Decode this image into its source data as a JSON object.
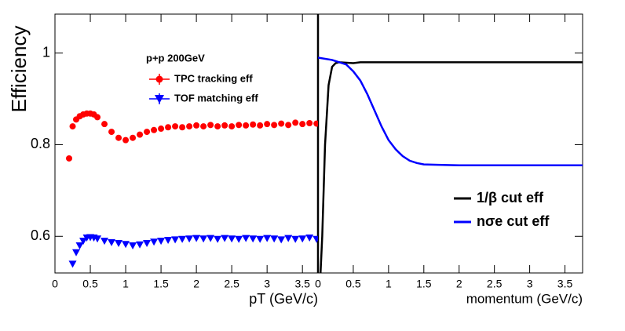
{
  "chart_data": [
    {
      "type": "scatter",
      "xlabel": "pT (GeV/c)",
      "ylabel": "Efficiency",
      "legend_title": "p+p 200GeV",
      "xlim": [
        0,
        3.72
      ],
      "ylim": [
        0.52,
        1.085
      ],
      "xticks": [
        0,
        0.5,
        1,
        1.5,
        2,
        2.5,
        3,
        3.5
      ],
      "yticks": [
        0.6,
        0.8,
        1
      ],
      "series": [
        {
          "name": "TPC tracking eff",
          "color": "#ff0000",
          "marker": "circle",
          "x": [
            0.2,
            0.25,
            0.3,
            0.35,
            0.4,
            0.45,
            0.5,
            0.55,
            0.6,
            0.7,
            0.8,
            0.9,
            1.0,
            1.1,
            1.2,
            1.3,
            1.4,
            1.5,
            1.6,
            1.7,
            1.8,
            1.9,
            2.0,
            2.1,
            2.2,
            2.3,
            2.4,
            2.5,
            2.6,
            2.7,
            2.8,
            2.9,
            3.0,
            3.1,
            3.2,
            3.3,
            3.4,
            3.5,
            3.6,
            3.7
          ],
          "values": [
            0.77,
            0.84,
            0.855,
            0.862,
            0.866,
            0.868,
            0.868,
            0.866,
            0.86,
            0.845,
            0.828,
            0.815,
            0.81,
            0.815,
            0.822,
            0.828,
            0.832,
            0.835,
            0.838,
            0.84,
            0.838,
            0.84,
            0.842,
            0.84,
            0.843,
            0.84,
            0.842,
            0.84,
            0.843,
            0.842,
            0.844,
            0.842,
            0.845,
            0.843,
            0.846,
            0.843,
            0.848,
            0.845,
            0.847,
            0.846
          ]
        },
        {
          "name": "TOF matching eff",
          "color": "#0000ff",
          "marker": "triangle-down",
          "x": [
            0.25,
            0.3,
            0.35,
            0.4,
            0.45,
            0.5,
            0.55,
            0.6,
            0.7,
            0.8,
            0.9,
            1.0,
            1.1,
            1.2,
            1.3,
            1.4,
            1.5,
            1.6,
            1.7,
            1.8,
            1.9,
            2.0,
            2.1,
            2.2,
            2.3,
            2.4,
            2.5,
            2.6,
            2.7,
            2.8,
            2.9,
            3.0,
            3.1,
            3.2,
            3.3,
            3.4,
            3.5,
            3.6,
            3.7
          ],
          "values": [
            0.54,
            0.565,
            0.58,
            0.59,
            0.597,
            0.598,
            0.597,
            0.595,
            0.59,
            0.587,
            0.585,
            0.583,
            0.58,
            0.582,
            0.585,
            0.588,
            0.59,
            0.592,
            0.593,
            0.594,
            0.595,
            0.596,
            0.595,
            0.596,
            0.594,
            0.596,
            0.595,
            0.594,
            0.596,
            0.595,
            0.594,
            0.596,
            0.595,
            0.593,
            0.596,
            0.594,
            0.595,
            0.597,
            0.594
          ]
        }
      ]
    },
    {
      "type": "line",
      "xlabel": "momentum (GeV/c)",
      "xlim": [
        0,
        3.75
      ],
      "ylim": [
        0.52,
        1.085
      ],
      "xticks": [
        0,
        0.5,
        1,
        1.5,
        2,
        2.5,
        3,
        3.5
      ],
      "series": [
        {
          "name": "1/β cut eff",
          "color": "#000000",
          "x": [
            0.03,
            0.06,
            0.1,
            0.15,
            0.2,
            0.25,
            0.3,
            0.5,
            0.6,
            1.0,
            2.0,
            3.75
          ],
          "values": [
            0.5,
            0.6,
            0.8,
            0.93,
            0.97,
            0.978,
            0.98,
            0.978,
            0.98,
            0.98,
            0.98,
            0.98
          ]
        },
        {
          "name": "nσe cut eff",
          "color": "#0000ff",
          "x": [
            0,
            0.2,
            0.4,
            0.5,
            0.6,
            0.7,
            0.8,
            0.9,
            1.0,
            1.1,
            1.2,
            1.3,
            1.4,
            1.5,
            1.7,
            2.0,
            3.75
          ],
          "values": [
            0.99,
            0.985,
            0.975,
            0.96,
            0.94,
            0.91,
            0.875,
            0.84,
            0.81,
            0.79,
            0.775,
            0.765,
            0.76,
            0.757,
            0.756,
            0.755,
            0.755
          ]
        }
      ]
    }
  ]
}
